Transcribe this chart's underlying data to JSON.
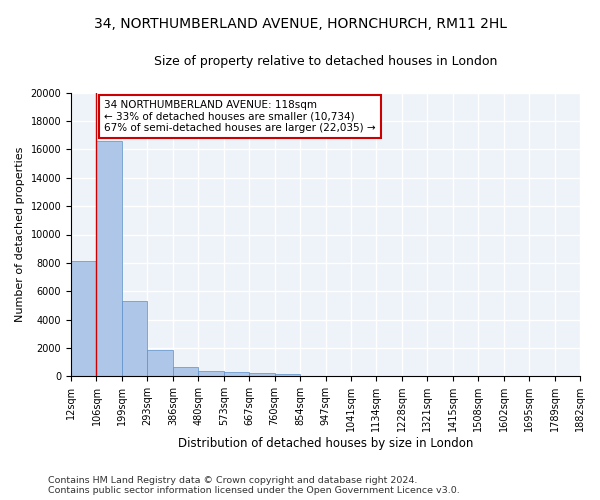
{
  "title": "34, NORTHUMBERLAND AVENUE, HORNCHURCH, RM11 2HL",
  "subtitle": "Size of property relative to detached houses in London",
  "xlabel": "Distribution of detached houses by size in London",
  "ylabel": "Number of detached properties",
  "bar_values": [
    8100,
    16600,
    5300,
    1850,
    650,
    350,
    270,
    220,
    190,
    0,
    0,
    0,
    0,
    0,
    0,
    0,
    0,
    0,
    0,
    0
  ],
  "bar_labels": [
    "12sqm",
    "106sqm",
    "199sqm",
    "293sqm",
    "386sqm",
    "480sqm",
    "573sqm",
    "667sqm",
    "760sqm",
    "854sqm",
    "947sqm",
    "1041sqm",
    "1134sqm",
    "1228sqm",
    "1321sqm",
    "1415sqm",
    "1508sqm",
    "1602sqm",
    "1695sqm",
    "1789sqm",
    "1882sqm"
  ],
  "bar_color": "#aec6e8",
  "bar_edge_color": "#5b8fc9",
  "annotation_text": "34 NORTHUMBERLAND AVENUE: 118sqm\n← 33% of detached houses are smaller (10,734)\n67% of semi-detached houses are larger (22,035) →",
  "annotation_box_color": "#ffffff",
  "annotation_box_edge": "#cc0000",
  "vline_color": "#cc0000",
  "ylim": [
    0,
    20000
  ],
  "yticks": [
    0,
    2000,
    4000,
    6000,
    8000,
    10000,
    12000,
    14000,
    16000,
    18000,
    20000
  ],
  "footer_line1": "Contains HM Land Registry data © Crown copyright and database right 2024.",
  "footer_line2": "Contains public sector information licensed under the Open Government Licence v3.0.",
  "background_color": "#eef3fa",
  "grid_color": "#ffffff",
  "title_fontsize": 10,
  "subtitle_fontsize": 9,
  "annotation_fontsize": 7.5,
  "footer_fontsize": 6.8,
  "ylabel_fontsize": 8,
  "xlabel_fontsize": 8.5,
  "tick_fontsize": 7
}
